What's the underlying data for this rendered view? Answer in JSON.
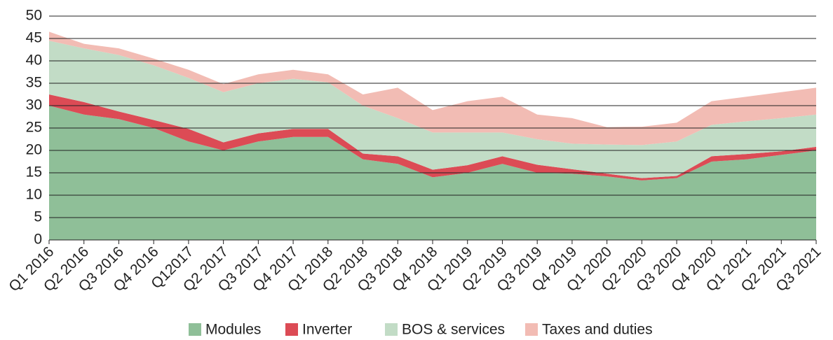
{
  "chart_data": {
    "type": "stacked_area",
    "categories": [
      "Q1 2016",
      "Q2 2016",
      "Q3 2016",
      "Q4 2016",
      "Q12017",
      "Q2 2017",
      "Q3 2017",
      "Q4 2017",
      "Q1 2018",
      "Q2 2018",
      "Q3 2018",
      "Q4 2018",
      "Q1 2019",
      "Q2 2019",
      "Q3 2019",
      "Q4 2019",
      "Q1 2020",
      "Q2 2020",
      "Q3 2020",
      "Q4 2020",
      "Q1 2021",
      "Q2 2021",
      "Q3 2021"
    ],
    "series": [
      {
        "name": "Modules",
        "color": "#8fbf98",
        "values": [
          30,
          28,
          27,
          25,
          22,
          20,
          22,
          23,
          23,
          18,
          17,
          14,
          15,
          17,
          15,
          14.8,
          14.2,
          13.3,
          13.8,
          17.5,
          18,
          19,
          20
        ]
      },
      {
        "name": "Inverter",
        "color": "#dc4b55",
        "values": [
          2.5,
          2.8,
          1.7,
          1.8,
          2.8,
          1.8,
          1.8,
          1.8,
          1.8,
          1.3,
          1.7,
          1.7,
          1.7,
          1.7,
          1.8,
          1.0,
          0.6,
          0.5,
          0.5,
          1.2,
          1.2,
          0.8,
          0.8
        ]
      },
      {
        "name": "BOS & services",
        "color": "#c2dcc6",
        "values": [
          12,
          12,
          12.6,
          12.2,
          11.4,
          11.2,
          11.2,
          11.2,
          10.4,
          10.7,
          8.5,
          8.3,
          7.3,
          5.3,
          5.7,
          5.7,
          6.5,
          7.4,
          7.7,
          7,
          7.3,
          7.4,
          7.2
        ]
      },
      {
        "name": "Taxes and duties",
        "color": "#f2bcb4",
        "values": [
          2,
          1,
          1.5,
          1.5,
          1.8,
          1.8,
          2,
          2,
          1.8,
          2.5,
          6.8,
          5,
          7,
          8,
          5.5,
          5.7,
          3.9,
          4.1,
          4.2,
          5.3,
          5.5,
          5.8,
          6
        ]
      }
    ],
    "ylim": [
      0,
      50
    ],
    "yticks": [
      0,
      5,
      10,
      15,
      20,
      25,
      30,
      35,
      40,
      45,
      50
    ],
    "grid": true
  }
}
